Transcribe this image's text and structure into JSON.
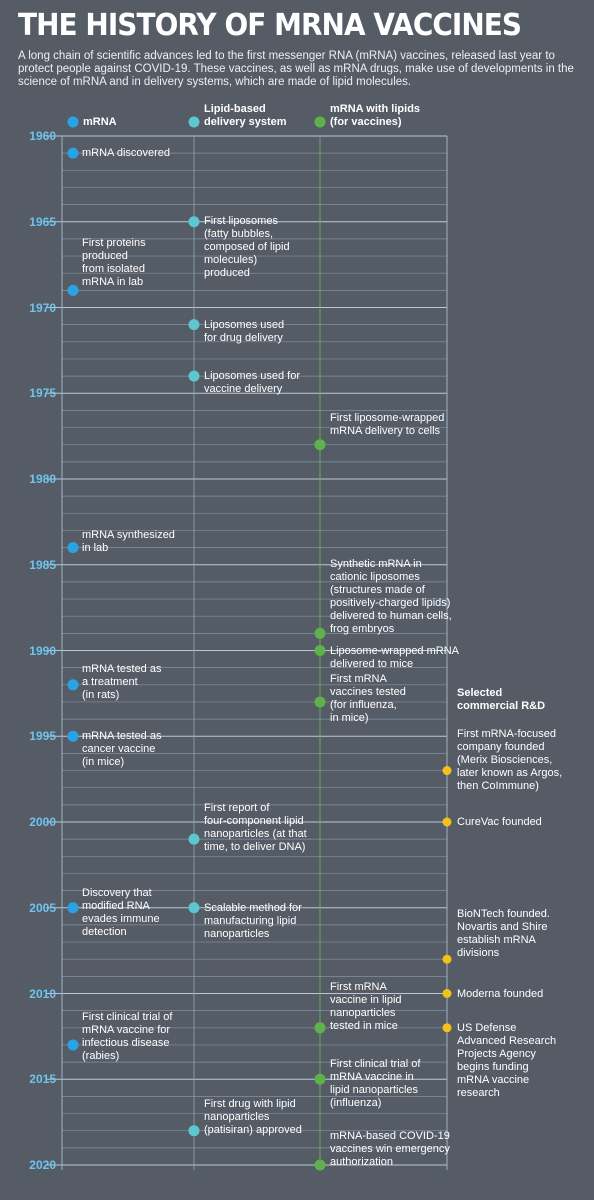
{
  "title": "THE HISTORY OF MRNA VACCINES",
  "intro": "A long chain of scientific advances led to the first messenger RNA (mRNA) vaccines, released last year to protect people against COVID-19. These vaccines, as well as mRNA drugs, make use of developments in the science of mRNA and in delivery systems, which are made of lipid molecules.",
  "colors": {
    "background": "#555c66",
    "mrna": "#2aa3e6",
    "lipid": "#5ec6d0",
    "vaccine": "#5fb14a",
    "commercial": "#f3c21a",
    "year_text": "#6fc3ee"
  },
  "legend": {
    "mrna": "mRNA",
    "lipid": "Lipid-based\ndelivery system",
    "vaccine": "mRNA with lipids\n(for vaccines)",
    "commercial": "Selected\ncommercial R&D"
  },
  "years": [
    "1960",
    "1965",
    "1970",
    "1975",
    "1980",
    "1985",
    "1990",
    "1995",
    "2000",
    "2005",
    "2010",
    "2015",
    "2020"
  ],
  "events": {
    "mrna": [
      {
        "year": 1961,
        "text": "mRNA discovered"
      },
      {
        "year": 1969,
        "text": "First proteins\nproduced\nfrom isolated\nmRNA in lab"
      },
      {
        "year": 1984,
        "text": "mRNA synthesized\nin lab"
      },
      {
        "year": 1992,
        "text": "mRNA tested as\na treatment\n(in rats)"
      },
      {
        "year": 1995,
        "text": "mRNA tested as\ncancer vaccine\n(in mice)"
      },
      {
        "year": 2005,
        "text": "Discovery that\nmodified RNA\nevades immune\ndetection"
      },
      {
        "year": 2013,
        "text": "First clinical trial of\nmRNA vaccine for\ninfectious disease\n(rabies)"
      }
    ],
    "lipid": [
      {
        "year": 1965,
        "text": "First liposomes\n(fatty bubbles,\ncomposed of lipid\nmolecules)\nproduced"
      },
      {
        "year": 1971,
        "text": "Liposomes used\nfor drug delivery"
      },
      {
        "year": 1974,
        "text": "Liposomes used for\nvaccine delivery"
      },
      {
        "year": 2001,
        "text": "First report of\nfour-component lipid\nnanoparticles (at that\ntime, to deliver DNA)"
      },
      {
        "year": 2005,
        "text": "Scalable method for\nmanufacturing lipid\nnanoparticles"
      },
      {
        "year": 2018,
        "text": "First drug with lipid\nnanoparticles\n(patisiran) approved"
      }
    ],
    "vaccine": [
      {
        "year": 1978,
        "text": "First liposome-wrapped\nmRNA delivery to cells"
      },
      {
        "year": 1989,
        "text": "Synthetic mRNA in\ncationic liposomes\n(structures made of\npositively-charged lipids)\ndelivered to human cells,\nfrog embryos"
      },
      {
        "year": 1990,
        "text": "Liposome-wrapped mRNA\ndelivered to mice"
      },
      {
        "year": 1993,
        "text": "First mRNA\nvaccines tested\n(for influenza,\nin mice)"
      },
      {
        "year": 2012,
        "text": "First mRNA\nvaccine in lipid\nnanoparticles\ntested in mice"
      },
      {
        "year": 2015,
        "text": "First clinical trial of\nmRNA vaccine in\nlipid nanoparticles\n(influenza)"
      },
      {
        "year": 2020,
        "text": "mRNA-based COVID-19\nvaccines win emergency\nauthorization"
      }
    ],
    "commercial": [
      {
        "year": 1997,
        "text": "First mRNA-focused\ncompany founded\n(Merix Biosciences,\nlater known as Argos,\nthen CoImmune)"
      },
      {
        "year": 2000,
        "text": "CureVac founded"
      },
      {
        "year": 2008,
        "text": "BioNTech founded.\nNovartis and Shire\nestablish mRNA\ndivisions"
      },
      {
        "year": 2010,
        "text": "Moderna founded"
      },
      {
        "year": 2012,
        "text": "US Defense\nAdvanced Research\nProjects Agency\nbegins funding\nmRNA vaccine\nresearch"
      }
    ]
  }
}
